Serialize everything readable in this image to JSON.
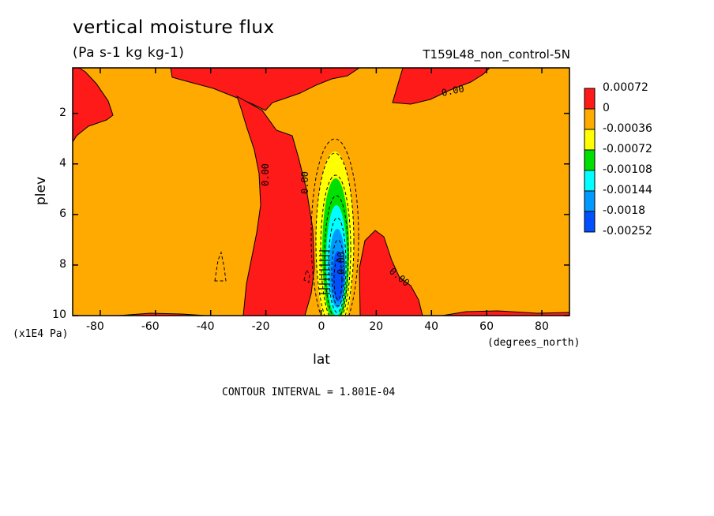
{
  "chart_data": {
    "type": "contour",
    "title": "vertical moisture flux",
    "units": "(Pa s-1 kg kg-1)",
    "run_label": "T159L48_non_control-5N",
    "xlabel": "lat",
    "ylabel": "plev",
    "x_units": "(degrees_north)",
    "y_units": "(x1E4 Pa)",
    "xlim": [
      -90,
      90
    ],
    "ylim": [
      10,
      0.2
    ],
    "x_ticks": [
      -80,
      -60,
      -40,
      -20,
      0,
      20,
      40,
      60,
      80
    ],
    "y_ticks": [
      2,
      4,
      6,
      8,
      10
    ],
    "contour_interval": "CONTOUR INTERVAL = 1.801E-04",
    "contour_labels": [
      "0.00",
      "0.00",
      "0.00",
      "0.00",
      "0.00"
    ],
    "legend": {
      "levels": [
        "0.00072",
        "0",
        "-0.00036",
        "-0.00072",
        "-0.00108",
        "-0.00144",
        "-0.0018",
        "-0.00252"
      ],
      "colors": [
        "#ff1a1a",
        "#ffaa00",
        "#ffff00",
        "#00e000",
        "#00ffff",
        "#0099ff",
        "#0050ff"
      ]
    },
    "colors": {
      "positive": "#ff1a1a",
      "background": "#ffaa00"
    }
  }
}
